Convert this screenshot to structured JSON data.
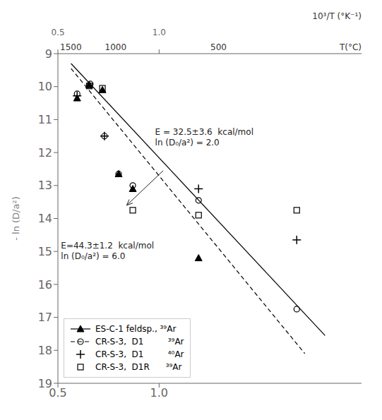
{
  "chart_data": {
    "type": "scatter",
    "ylabel": "- ln (D/a²)",
    "x2label": "10³/T  (°K⁻¹)",
    "xlim": [
      0.5,
      2.0
    ],
    "ylim": [
      19,
      9
    ],
    "xticks": [
      0.5,
      {
        "value": 1.0,
        "label": "1.0"
      }
    ],
    "yticks": [
      9,
      10,
      11,
      12,
      13,
      14,
      15,
      16,
      17,
      18,
      19
    ],
    "t_ticks": [
      {
        "value": 0.5640157924,
        "label": "1500"
      },
      {
        "value": 0.785545954,
        "label": "1000"
      },
      {
        "value": 1.29366106,
        "label": "500"
      }
    ],
    "t_label": "T(°C)",
    "grid": false,
    "legend": "lower left",
    "series": [
      {
        "name": "ES-C-1 feldsp., ³⁹Ar",
        "marker": "triangle",
        "color": "black",
        "x": [
          0.595,
          0.655,
          0.72,
          0.8,
          0.87,
          1.195
        ],
        "values": [
          10.35,
          9.95,
          10.1,
          12.65,
          13.1,
          15.2
        ],
        "fit": {
          "x": [
            0.565,
            1.82
          ],
          "values": [
            9.3,
            17.55
          ],
          "line_style": "solid"
        }
      },
      {
        "name": "CR-S-3,  D1         ³⁹Ar",
        "marker": "circle",
        "color": "black",
        "x": [
          0.595,
          0.66,
          0.73,
          0.8,
          0.87,
          1.195,
          1.68
        ],
        "values": [
          10.22,
          9.92,
          11.5,
          12.65,
          13.0,
          13.45,
          16.75
        ],
        "fit": {
          "x": [
            0.565,
            1.72
          ],
          "values": [
            9.45,
            18.1
          ],
          "line_style": "dashed"
        }
      },
      {
        "name": "CR-S-3,  D1         ⁴⁰Ar",
        "marker": "plus",
        "color": "black",
        "x": [
          0.595,
          0.73,
          1.195,
          1.68
        ],
        "values": [
          10.28,
          11.5,
          13.1,
          14.65
        ]
      },
      {
        "name": "CR-S-3,  D1R      ³⁹Ar",
        "marker": "square",
        "color": "black",
        "x": [
          0.655,
          0.72,
          0.87,
          1.195,
          1.68
        ],
        "values": [
          9.98,
          10.05,
          13.75,
          13.9,
          13.75
        ]
      }
    ],
    "annotations": [
      {
        "text": "E = 32.5±3.6  kcal/mol\nln (D₀/a²) = 2.0",
        "x": 0.98,
        "y": 11.2,
        "arrow": {
          "from": [
            1.02,
            12.55
          ],
          "to": [
            0.84,
            13.6
          ]
        }
      },
      {
        "text": "E=44.3±1.2  kcal/mol\nln (D₀/a²) = 6.0",
        "x": 0.515,
        "y": 14.65
      }
    ]
  }
}
